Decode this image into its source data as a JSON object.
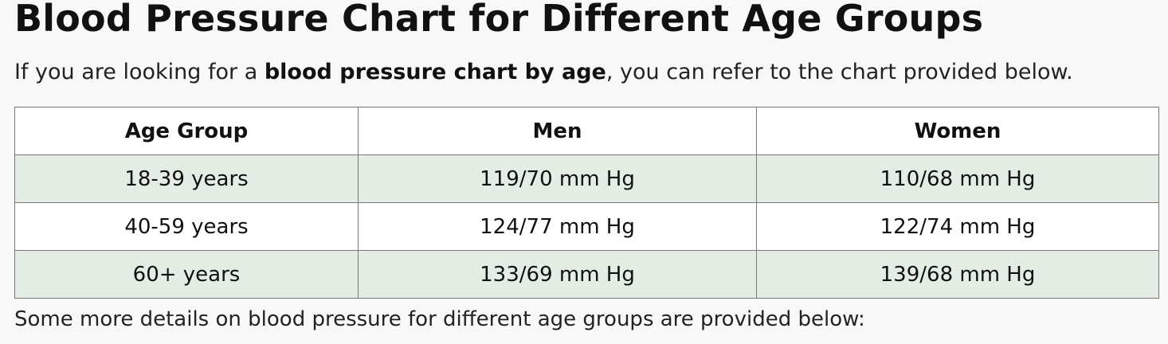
{
  "title": "Blood Pressure Chart for Different Age Groups",
  "intro": {
    "before": "If you are looking for a ",
    "bold": "blood pressure chart by age",
    "after": ", you can refer to the chart provided below."
  },
  "table": {
    "headers": [
      "Age Group",
      "Men",
      "Women"
    ],
    "rows": [
      [
        "18-39 years",
        "119/70 mm Hg",
        "110/68 mm Hg"
      ],
      [
        "40-59 years",
        "124/77 mm Hg",
        "122/74 mm Hg"
      ],
      [
        "60+ years",
        "133/69 mm Hg",
        "139/68 mm Hg"
      ]
    ]
  },
  "outro": "Some more details on blood pressure for different age groups are provided below:",
  "colors": {
    "alt_row": "#e3ede4",
    "border": "#777777",
    "background": "#f8f8f8"
  }
}
